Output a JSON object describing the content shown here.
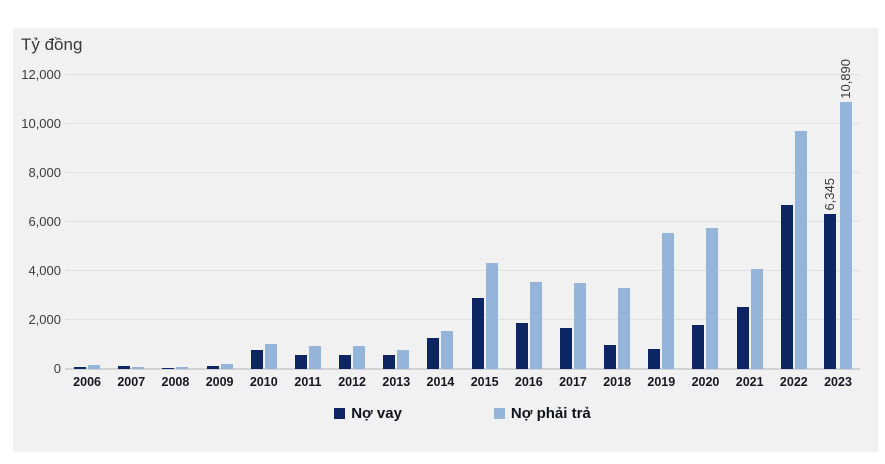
{
  "page": {
    "background_color": "#ffffff",
    "panel_background_color": "#f1f1f2"
  },
  "chart_data": {
    "type": "bar",
    "title": "Tỷ đồng",
    "categories": [
      "2006",
      "2007",
      "2008",
      "2009",
      "2010",
      "2011",
      "2012",
      "2013",
      "2014",
      "2015",
      "2016",
      "2017",
      "2018",
      "2019",
      "2020",
      "2021",
      "2022",
      "2023"
    ],
    "series": [
      {
        "name": "Nợ vay",
        "color": "#0e2563",
        "values": [
          100,
          110,
          15,
          140,
          760,
          560,
          560,
          580,
          1280,
          2900,
          1870,
          1660,
          960,
          810,
          1800,
          2540,
          6680,
          6345
        ]
      },
      {
        "name": "Nợ phải trả",
        "color": "#94b4d9",
        "values": [
          150,
          95,
          95,
          190,
          1040,
          930,
          940,
          790,
          1550,
          4340,
          3560,
          3500,
          3300,
          5540,
          5750,
          4100,
          9700,
          10890
        ]
      }
    ],
    "data_labels": [
      {
        "series": 0,
        "category": "2023",
        "text": "6,345"
      },
      {
        "series": 1,
        "category": "2023",
        "text": "10,890"
      }
    ],
    "ylim": [
      0,
      12000
    ],
    "ytick_step": 2000,
    "ytick_labels": [
      "0",
      "2,000",
      "4,000",
      "6,000",
      "8,000",
      "10,000",
      "12,000"
    ],
    "grid": "horizontal",
    "legend_position": "bottom",
    "data_label_rotation": "vertical-bottom-up"
  }
}
